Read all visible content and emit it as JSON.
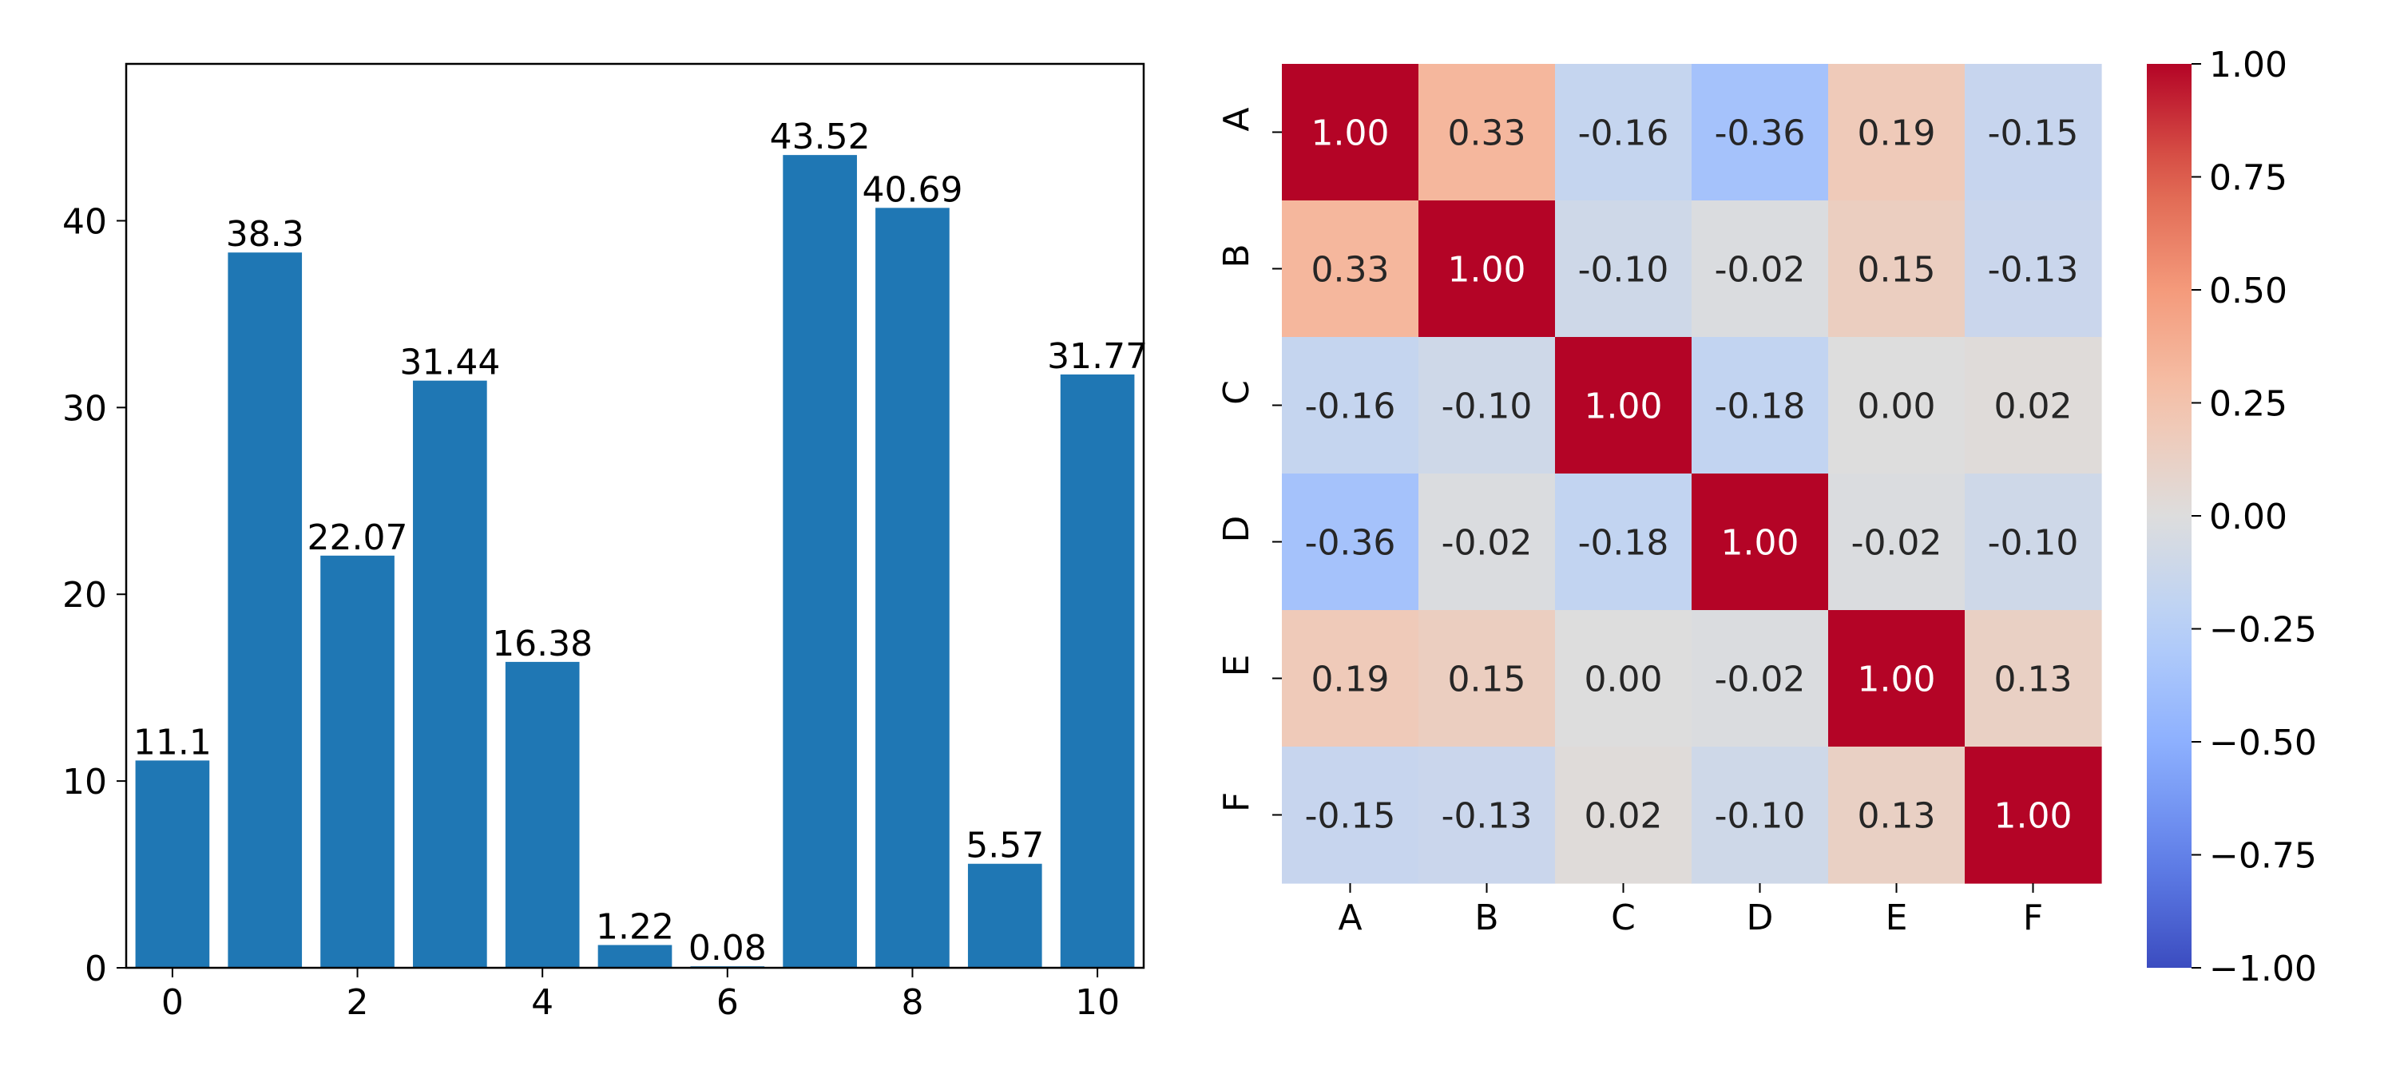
{
  "chart_data": [
    {
      "type": "bar",
      "categories": [
        0,
        1,
        2,
        3,
        4,
        5,
        6,
        7,
        8,
        9,
        10
      ],
      "values": [
        11.1,
        38.3,
        22.07,
        31.44,
        16.38,
        1.22,
        0.08,
        43.52,
        40.69,
        5.57,
        31.77
      ],
      "value_labels": [
        "11.1",
        "38.3",
        "22.07",
        "31.44",
        "16.38",
        "1.22",
        "0.08",
        "43.52",
        "40.69",
        "5.57",
        "31.77"
      ],
      "xticks": [
        "0",
        "2",
        "4",
        "6",
        "8",
        "10"
      ],
      "yticks": [
        "0",
        "10",
        "20",
        "30",
        "40"
      ],
      "xlim": [
        -0.5,
        10.5
      ],
      "ylim": [
        0,
        48.4
      ],
      "bar_color": "#1f77b4",
      "grid": false,
      "title": "",
      "xlabel": "",
      "ylabel": ""
    },
    {
      "type": "heatmap",
      "row_labels": [
        "A",
        "B",
        "C",
        "D",
        "E",
        "F"
      ],
      "col_labels": [
        "A",
        "B",
        "C",
        "D",
        "E",
        "F"
      ],
      "values": [
        [
          1.0,
          0.33,
          -0.16,
          -0.36,
          0.19,
          -0.15
        ],
        [
          0.33,
          1.0,
          -0.1,
          -0.02,
          0.15,
          -0.13
        ],
        [
          -0.16,
          -0.1,
          1.0,
          -0.18,
          0.0,
          0.02
        ],
        [
          -0.36,
          -0.02,
          -0.18,
          1.0,
          -0.02,
          -0.1
        ],
        [
          0.19,
          0.15,
          0.0,
          -0.02,
          1.0,
          0.13
        ],
        [
          -0.15,
          -0.13,
          0.02,
          -0.1,
          0.13,
          1.0
        ]
      ],
      "cell_labels": [
        [
          "1.00",
          "0.33",
          "-0.16",
          "-0.36",
          "0.19",
          "-0.15"
        ],
        [
          "0.33",
          "1.00",
          "-0.10",
          "-0.02",
          "0.15",
          "-0.13"
        ],
        [
          "-0.16",
          "-0.10",
          "1.00",
          "-0.18",
          "0.00",
          "0.02"
        ],
        [
          "-0.36",
          "-0.02",
          "-0.18",
          "1.00",
          "-0.02",
          "-0.10"
        ],
        [
          "0.19",
          "0.15",
          "0.00",
          "-0.02",
          "1.00",
          "0.13"
        ],
        [
          "-0.15",
          "-0.13",
          "0.02",
          "-0.10",
          "0.13",
          "1.00"
        ]
      ],
      "vmin": -1.0,
      "vmax": 1.0,
      "colormap": "coolwarm",
      "colorbar_ticks": [
        1.0,
        0.75,
        0.5,
        0.25,
        0.0,
        -0.25,
        -0.5,
        -0.75,
        -1.0
      ],
      "colorbar_tick_labels": [
        "1.00",
        "0.75",
        "0.50",
        "0.25",
        "0.00",
        "−0.25",
        "−0.50",
        "−0.75",
        "−1.00"
      ],
      "title": ""
    }
  ]
}
